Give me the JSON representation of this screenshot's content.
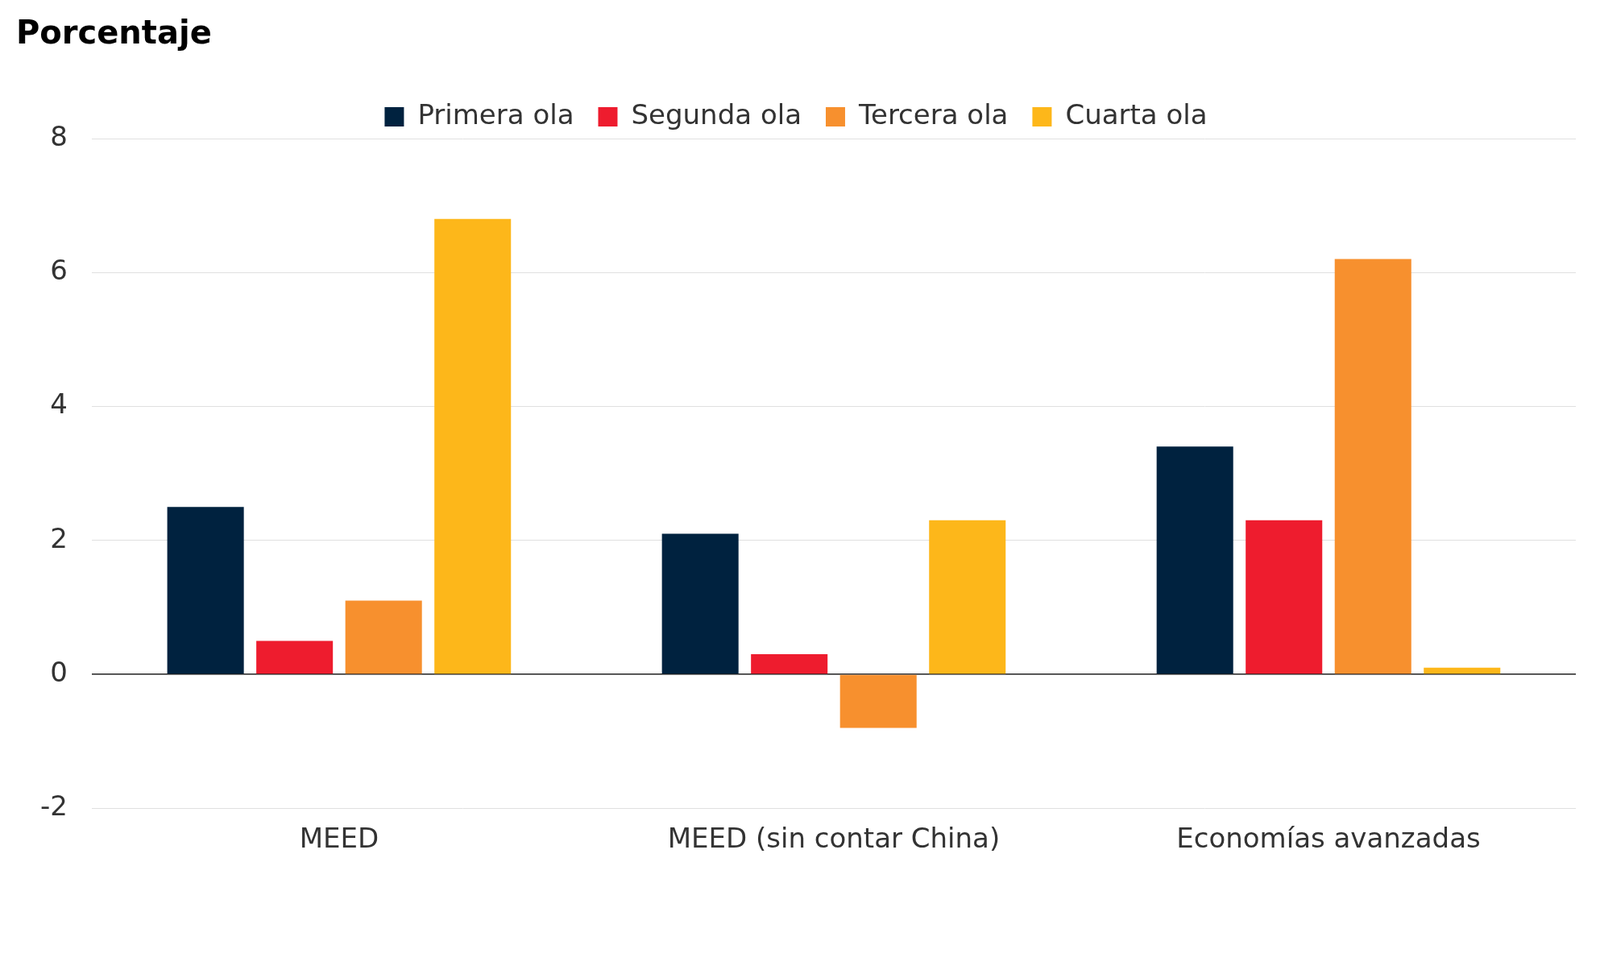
{
  "chart_data": {
    "type": "bar",
    "title": "Porcentaje",
    "categories": [
      "MEED",
      "MEED (sin contar China)",
      "Economías avanzadas"
    ],
    "series": [
      {
        "name": "Primera ola",
        "color": "#00223f",
        "values": [
          2.5,
          2.1,
          3.4
        ]
      },
      {
        "name": "Segunda ola",
        "color": "#ee1c2e",
        "values": [
          0.5,
          0.3,
          2.3
        ]
      },
      {
        "name": "Tercera ola",
        "color": "#f7902e",
        "values": [
          1.1,
          -0.8,
          6.2
        ]
      },
      {
        "name": "Cuarta ola",
        "color": "#fdb71a",
        "values": [
          6.8,
          2.3,
          0.1
        ]
      }
    ],
    "ylim": [
      -2,
      8
    ],
    "yticks": [
      -2,
      0,
      2,
      4,
      6,
      8
    ],
    "grid": true,
    "legend": "top"
  }
}
